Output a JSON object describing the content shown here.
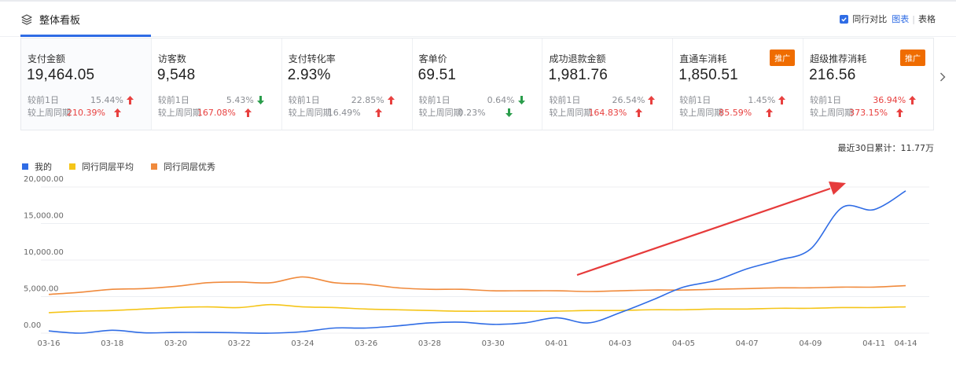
{
  "header": {
    "title": "整体看板",
    "compare_label": "同行对比",
    "view_chart": "图表",
    "separator": "|",
    "view_table": "表格"
  },
  "cards": [
    {
      "label": "支付金额",
      "value": "19,464.05",
      "badge": "",
      "cmp": [
        {
          "label": "较前1日",
          "value": "15.44%",
          "red": false,
          "dir": "up"
        },
        {
          "label": "较上周同期",
          "value": "210.39%",
          "red": true,
          "dir": "up"
        }
      ]
    },
    {
      "label": "访客数",
      "value": "9,548",
      "badge": "",
      "cmp": [
        {
          "label": "较前1日",
          "value": "5.43%",
          "red": false,
          "dir": "down"
        },
        {
          "label": "较上周同期",
          "value": "167.08%",
          "red": true,
          "dir": "up"
        }
      ]
    },
    {
      "label": "支付转化率",
      "value": "2.93%",
      "badge": "",
      "cmp": [
        {
          "label": "较前1日",
          "value": "22.85%",
          "red": false,
          "dir": "up"
        },
        {
          "label": "较上周同期",
          "value": "16.49%",
          "red": false,
          "dir": "up"
        }
      ]
    },
    {
      "label": "客单价",
      "value": "69.51",
      "badge": "",
      "cmp": [
        {
          "label": "较前1日",
          "value": "0.64%",
          "red": false,
          "dir": "down"
        },
        {
          "label": "较上周同期",
          "value": "0.23%",
          "red": false,
          "dir": "down"
        }
      ]
    },
    {
      "label": "成功退款金额",
      "value": "1,981.76",
      "badge": "",
      "cmp": [
        {
          "label": "较前1日",
          "value": "26.54%",
          "red": false,
          "dir": "up"
        },
        {
          "label": "较上周同期",
          "value": "164.83%",
          "red": true,
          "dir": "up"
        }
      ]
    },
    {
      "label": "直通车消耗",
      "value": "1,850.51",
      "badge": "推广",
      "cmp": [
        {
          "label": "较前1日",
          "value": "1.45%",
          "red": false,
          "dir": "up"
        },
        {
          "label": "较上周同期",
          "value": "85.59%",
          "red": true,
          "dir": "up"
        }
      ]
    },
    {
      "label": "超级推荐消耗",
      "value": "216.56",
      "badge": "推广",
      "cmp": [
        {
          "label": "较前1日",
          "value": "36.94%",
          "red": true,
          "dir": "up"
        },
        {
          "label": "较上周同期",
          "value": "373.15%",
          "red": true,
          "dir": "up"
        }
      ]
    }
  ],
  "total_label": "最近30日累计：11.77万",
  "colors": {
    "accent": "#2f6ce5",
    "mine": "#2f6ce5",
    "avg": "#f5c518",
    "top": "#f08a3c",
    "up": "#e8403f",
    "down": "#2a9d4b",
    "badge": "#ef6c00",
    "annotation": "#e63b3b"
  },
  "chart_data": {
    "type": "line",
    "series": [
      {
        "name": "我的",
        "color": "#2f6ce5",
        "values": [
          300,
          0,
          400,
          50,
          100,
          100,
          50,
          0,
          200,
          700,
          700,
          1000,
          1400,
          1500,
          1200,
          1400,
          2100,
          1400,
          2800,
          4500,
          6300,
          7200,
          8800,
          10000,
          11500,
          17200,
          16900,
          19464
        ]
      },
      {
        "name": "同行同层平均",
        "color": "#f5c518",
        "values": [
          2800,
          3000,
          3100,
          3300,
          3500,
          3600,
          3500,
          3900,
          3600,
          3500,
          3300,
          3200,
          3100,
          3000,
          3000,
          3000,
          3000,
          3100,
          3100,
          3200,
          3200,
          3300,
          3300,
          3400,
          3400,
          3500,
          3500,
          3600
        ]
      },
      {
        "name": "同行同层优秀",
        "color": "#f08a3c",
        "values": [
          5300,
          5600,
          6000,
          6100,
          6400,
          6900,
          7000,
          6900,
          7700,
          6900,
          6700,
          6200,
          6000,
          6000,
          5800,
          5800,
          5800,
          5700,
          5800,
          5900,
          5900,
          6000,
          6100,
          6200,
          6200,
          6300,
          6300,
          6500
        ]
      }
    ],
    "x_ticks": [
      "03-16",
      "03-18",
      "03-20",
      "03-22",
      "03-24",
      "03-26",
      "03-28",
      "03-30",
      "04-01",
      "04-03",
      "04-05",
      "04-07",
      "04-09",
      "04-11",
      "04-14"
    ],
    "y_ticks": [
      "20,000.00",
      "15,000.00",
      "10,000.00",
      "5,000.00",
      "0.00"
    ],
    "ylim": [
      0,
      20000
    ],
    "grid": true,
    "legend": "top-left",
    "annotation": "red arrow pointing up-right toward the recent rise"
  }
}
